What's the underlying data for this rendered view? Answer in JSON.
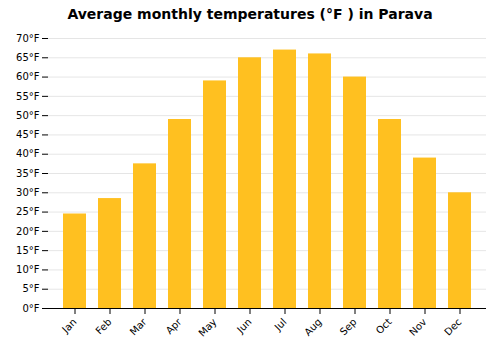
{
  "chart_data": {
    "type": "bar",
    "title": "Average monthly temperatures (°F ) in Parava",
    "categories": [
      "Jan",
      "Feb",
      "Mar",
      "Apr",
      "May",
      "Jun",
      "Jul",
      "Aug",
      "Sep",
      "Oct",
      "Nov",
      "Dec"
    ],
    "values": [
      24.5,
      28.5,
      37.5,
      49.0,
      59.0,
      65.0,
      67.0,
      66.0,
      60.0,
      49.0,
      39.0,
      30.0
    ],
    "color": "#FFC020",
    "ylim": [
      0,
      70
    ],
    "yticks": [
      {
        "value": 0,
        "label": "0°F"
      },
      {
        "value": 5,
        "label": "5°F"
      },
      {
        "value": 10,
        "label": "10°F"
      },
      {
        "value": 15,
        "label": "15°F"
      },
      {
        "value": 20,
        "label": "20°F"
      },
      {
        "value": 25,
        "label": "25°F"
      },
      {
        "value": 30,
        "label": "30°F"
      },
      {
        "value": 35,
        "label": "35°F"
      },
      {
        "value": 40,
        "label": "40°F"
      },
      {
        "value": 45,
        "label": "45°F"
      },
      {
        "value": 50,
        "label": "50°F"
      },
      {
        "value": 55,
        "label": "55°F"
      },
      {
        "value": 60,
        "label": "60°F"
      },
      {
        "value": 65,
        "label": "65°F"
      },
      {
        "value": 70,
        "label": "70°F"
      }
    ],
    "grid": true
  }
}
